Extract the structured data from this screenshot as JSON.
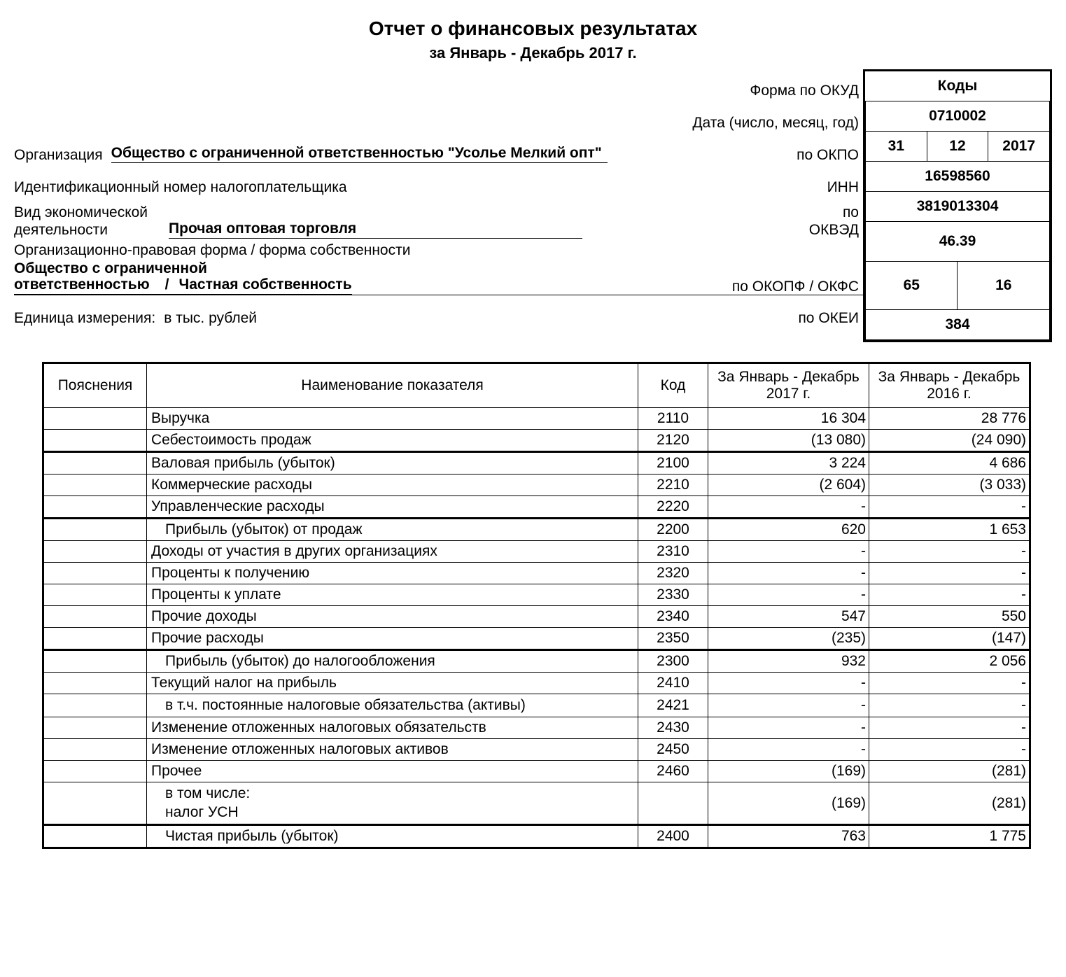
{
  "title": "Отчет о финансовых результатах",
  "subtitle": "за Январь - Декабрь 2017 г.",
  "header": {
    "form_okud_label": "Форма по ОКУД",
    "date_label": "Дата (число, месяц, год)",
    "org_label": "Организация",
    "org_value": "Общество с ограниченной ответственностью \"Усолье Мелкий опт\"",
    "okpo_label": "по ОКПО",
    "inn_label_full": "Идентификационный номер налогоплательщика",
    "inn_label_short": "ИНН",
    "activity_type_label1": "Вид экономической",
    "activity_type_label2": "деятельности",
    "activity_value": "Прочая оптовая торговля",
    "okved_label1": "по",
    "okved_label2": "ОКВЭД",
    "org_form_label": "Организационно-правовая форма / форма собственности",
    "org_form_value1": "Общество с ограниченной",
    "org_form_value2": "ответственностью",
    "ownership_value": "Частная собственность",
    "okopf_label": "по ОКОПФ / ОКФС",
    "unit_label": "Единица измерения:",
    "unit_value": "в тыс. рублей",
    "okei_label": "по ОКЕИ"
  },
  "codes": {
    "head": "Коды",
    "okud": "0710002",
    "date_d": "31",
    "date_m": "12",
    "date_y": "2017",
    "okpo": "16598560",
    "inn": "3819013304",
    "okved": "46.39",
    "okopf": "65",
    "okfs": "16",
    "okei": "384"
  },
  "table": {
    "columns": {
      "expl": "Пояснения",
      "name": "Наименование показателя",
      "code": "Код",
      "period1": "За Январь - Декабрь 2017 г.",
      "period2": "За Январь - Декабрь 2016 г."
    },
    "rows": [
      {
        "expl": "",
        "name": "Выручка",
        "indent": 0,
        "code": "2110",
        "p1": "16 304",
        "p2": "28 776",
        "heavy": false
      },
      {
        "expl": "",
        "name": "Себестоимость продаж",
        "indent": 0,
        "code": "2120",
        "p1": "(13 080)",
        "p2": "(24 090)",
        "heavy": false
      },
      {
        "expl": "",
        "name": "Валовая прибыль (убыток)",
        "indent": 0,
        "code": "2100",
        "p1": "3 224",
        "p2": "4 686",
        "heavy": true
      },
      {
        "expl": "",
        "name": "Коммерческие расходы",
        "indent": 0,
        "code": "2210",
        "p1": "(2 604)",
        "p2": "(3 033)",
        "heavy": false
      },
      {
        "expl": "",
        "name": "Управленческие расходы",
        "indent": 0,
        "code": "2220",
        "p1": "-",
        "p2": "-",
        "heavy": false
      },
      {
        "expl": "",
        "name": "Прибыль (убыток) от продаж",
        "indent": 1,
        "code": "2200",
        "p1": "620",
        "p2": "1 653",
        "heavy": true
      },
      {
        "expl": "",
        "name": "Доходы от участия в других организациях",
        "indent": 0,
        "code": "2310",
        "p1": "-",
        "p2": "-",
        "heavy": false
      },
      {
        "expl": "",
        "name": "Проценты к получению",
        "indent": 0,
        "code": "2320",
        "p1": "-",
        "p2": "-",
        "heavy": false
      },
      {
        "expl": "",
        "name": "Проценты к уплате",
        "indent": 0,
        "code": "2330",
        "p1": "-",
        "p2": "-",
        "heavy": false
      },
      {
        "expl": "",
        "name": "Прочие доходы",
        "indent": 0,
        "code": "2340",
        "p1": "547",
        "p2": "550",
        "heavy": false
      },
      {
        "expl": "",
        "name": "Прочие расходы",
        "indent": 0,
        "code": "2350",
        "p1": "(235)",
        "p2": "(147)",
        "heavy": false
      },
      {
        "expl": "",
        "name": "Прибыль (убыток) до налогообложения",
        "indent": 1,
        "code": "2300",
        "p1": "932",
        "p2": "2 056",
        "heavy": true
      },
      {
        "expl": "",
        "name": "Текущий налог на прибыль",
        "indent": 0,
        "code": "2410",
        "p1": "-",
        "p2": "-",
        "heavy": false
      },
      {
        "expl": "",
        "name": "в т.ч. постоянные налоговые обязательства (активы)",
        "indent": 2,
        "code": "2421",
        "p1": "-",
        "p2": "-",
        "heavy": false
      },
      {
        "expl": "",
        "name": "Изменение отложенных налоговых обязательств",
        "indent": 0,
        "code": "2430",
        "p1": "-",
        "p2": "-",
        "heavy": false
      },
      {
        "expl": "",
        "name": "Изменение отложенных налоговых активов",
        "indent": 0,
        "code": "2450",
        "p1": "-",
        "p2": "-",
        "heavy": false
      },
      {
        "expl": "",
        "name": "Прочее",
        "indent": 0,
        "code": "2460",
        "p1": "(169)",
        "p2": "(281)",
        "heavy": false
      },
      {
        "expl": "",
        "name": "в том числе:\nналог УСН",
        "indent": 2,
        "code": "",
        "p1": "(169)",
        "p2": "(281)",
        "heavy": false
      },
      {
        "expl": "",
        "name": "Чистая прибыль (убыток)",
        "indent": 1,
        "code": "2400",
        "p1": "763",
        "p2": "1 775",
        "heavy": true
      }
    ]
  }
}
